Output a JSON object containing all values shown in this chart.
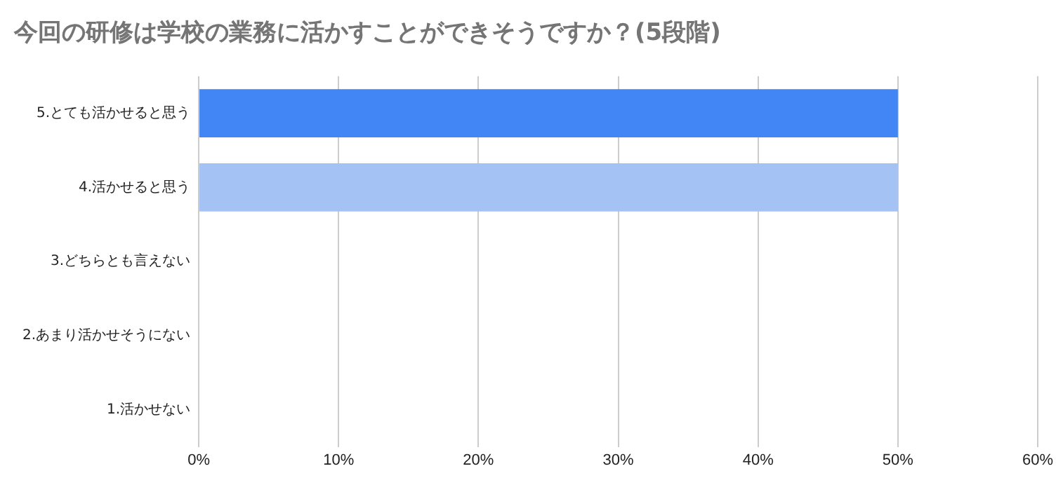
{
  "chart_data": {
    "type": "bar",
    "orientation": "horizontal",
    "title": "今回の研修は学校の業務に活かすことができそうですか？(5段階)",
    "categories": [
      "5.とても活かせると思う",
      "4.活かせると思う",
      "3.どちらとも言えない",
      "2.あまり活かせそうにない",
      "1.活かせない"
    ],
    "values": [
      50,
      50,
      0,
      0,
      0
    ],
    "colors": [
      "#4285f4",
      "#a4c2f4",
      "#4285f4",
      "#4285f4",
      "#4285f4"
    ],
    "xlim": [
      0,
      60
    ],
    "xticks": [
      {
        "value": 0,
        "label": "0%"
      },
      {
        "value": 10,
        "label": "10%"
      },
      {
        "value": 20,
        "label": "20%"
      },
      {
        "value": 30,
        "label": "30%"
      },
      {
        "value": 40,
        "label": "40%"
      },
      {
        "value": 50,
        "label": "50%"
      },
      {
        "value": 60,
        "label": "60%"
      }
    ],
    "grid": "x",
    "legend": false
  }
}
